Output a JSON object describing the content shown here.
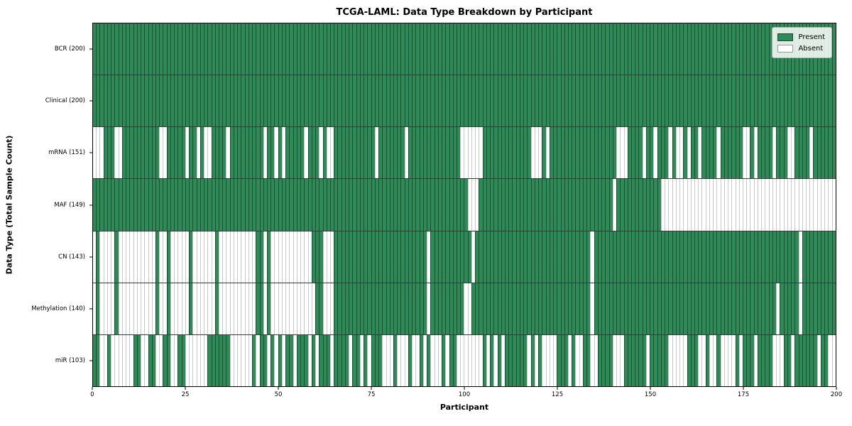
{
  "chart_data": {
    "type": "heatmap",
    "title": "TCGA-LAML: Data Type Breakdown by Participant",
    "xlabel": "Participant",
    "ylabel": "Data Type (Total Sample Count)",
    "x_ticks": [
      0,
      25,
      50,
      75,
      100,
      125,
      150,
      175,
      200
    ],
    "n_participants": 200,
    "grid": true,
    "legend_position": "upper right",
    "colors": {
      "present": "#2e8b57",
      "absent": "#ffffff",
      "grid_on_green": "#1d4d33",
      "grid_on_white": "#c9c9c9"
    },
    "legend": [
      {
        "label": "Present",
        "color": "#2e8b57"
      },
      {
        "label": "Absent",
        "color": "#ffffff"
      }
    ],
    "rows": [
      {
        "label": "BCR (200)",
        "name": "BCR",
        "present_count": 200,
        "mode": "absent",
        "indices": []
      },
      {
        "label": "Clinical (200)",
        "name": "Clinical",
        "present_count": 200,
        "mode": "absent",
        "indices": []
      },
      {
        "label": "mRNA (151)",
        "name": "mRNA",
        "present_count": 151,
        "mode": "absent",
        "indices": [
          0,
          1,
          2,
          6,
          7,
          18,
          19,
          25,
          28,
          30,
          31,
          36,
          46,
          49,
          51,
          57,
          61,
          63,
          64,
          76,
          84,
          99,
          100,
          101,
          102,
          103,
          104,
          118,
          119,
          120,
          122,
          141,
          142,
          143,
          148,
          151,
          155,
          157,
          158,
          160,
          163,
          168,
          175,
          176,
          178,
          183,
          187,
          188,
          193
        ]
      },
      {
        "label": "MAF (149)",
        "name": "MAF",
        "present_count": 149,
        "mode": "absent",
        "indices": [
          101,
          102,
          103,
          140,
          153,
          154,
          155,
          156,
          157,
          158,
          159,
          160,
          161,
          162,
          163,
          164,
          165,
          166,
          167,
          168,
          169,
          170,
          171,
          172,
          173,
          174,
          175,
          176,
          177,
          178,
          179,
          180,
          181,
          182,
          183,
          184,
          185,
          186,
          187,
          188,
          189,
          190,
          191,
          192,
          193,
          194,
          195,
          196,
          197,
          198,
          199
        ]
      },
      {
        "label": "CN (143)",
        "name": "CN",
        "present_count": 143,
        "mode": "absent",
        "indices": [
          0,
          2,
          3,
          4,
          5,
          7,
          8,
          9,
          10,
          11,
          12,
          13,
          14,
          15,
          16,
          18,
          19,
          21,
          22,
          23,
          24,
          25,
          27,
          28,
          29,
          30,
          31,
          32,
          34,
          35,
          36,
          37,
          38,
          39,
          40,
          41,
          42,
          43,
          46,
          48,
          49,
          50,
          51,
          52,
          53,
          54,
          55,
          56,
          57,
          58,
          62,
          63,
          64,
          90,
          102,
          134,
          190
        ]
      },
      {
        "label": "Methylation (140)",
        "name": "Methylation",
        "present_count": 140,
        "mode": "absent",
        "indices": [
          0,
          2,
          3,
          4,
          5,
          7,
          8,
          9,
          10,
          11,
          12,
          13,
          14,
          15,
          16,
          18,
          19,
          21,
          22,
          23,
          24,
          25,
          27,
          28,
          29,
          30,
          31,
          32,
          34,
          35,
          36,
          37,
          38,
          39,
          40,
          41,
          42,
          43,
          46,
          48,
          49,
          50,
          51,
          52,
          53,
          54,
          55,
          56,
          57,
          58,
          59,
          62,
          63,
          64,
          90,
          100,
          101,
          134,
          184,
          190
        ]
      },
      {
        "label": "miR (103)",
        "name": "miR",
        "present_count": 103,
        "mode": "present",
        "indices": [
          0,
          1,
          4,
          11,
          12,
          15,
          16,
          19,
          20,
          23,
          24,
          31,
          32,
          33,
          34,
          35,
          36,
          43,
          45,
          46,
          48,
          50,
          52,
          53,
          55,
          56,
          57,
          59,
          61,
          62,
          63,
          65,
          66,
          67,
          68,
          70,
          71,
          73,
          75,
          76,
          77,
          81,
          85,
          88,
          90,
          94,
          96,
          97,
          105,
          107,
          109,
          111,
          112,
          113,
          114,
          115,
          116,
          118,
          120,
          125,
          126,
          127,
          129,
          132,
          133,
          136,
          137,
          138,
          139,
          143,
          144,
          145,
          146,
          147,
          148,
          150,
          151,
          152,
          153,
          154,
          160,
          161,
          162,
          165,
          168,
          173,
          175,
          176,
          177,
          179,
          180,
          181,
          182,
          186,
          187,
          189,
          190,
          191,
          192,
          193,
          194,
          196,
          197
        ]
      }
    ]
  }
}
